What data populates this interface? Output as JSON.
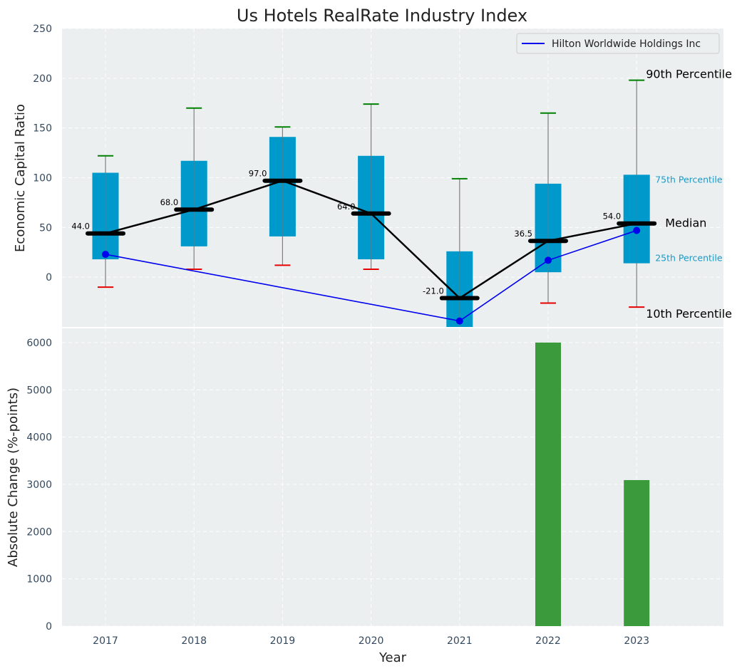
{
  "chart_data": [
    {
      "type": "box",
      "title": "Us Hotels RealRate Industry Index",
      "ylabel": "Economic Capital Ratio",
      "categories": [
        "2017",
        "2018",
        "2019",
        "2020",
        "2021",
        "2022",
        "2023"
      ],
      "ylim": [
        -50,
        250
      ],
      "yticks": [
        0,
        50,
        100,
        150,
        200,
        250
      ],
      "grid": true,
      "p10": [
        -10,
        8,
        12,
        8,
        null,
        -26,
        -30
      ],
      "p25": [
        18,
        31,
        41,
        18,
        -50,
        5,
        14
      ],
      "median": [
        44.0,
        68.0,
        97.0,
        64.0,
        -21.0,
        36.5,
        54.0
      ],
      "median_labels": [
        "44.0",
        "68.0",
        "97.0",
        "64.0",
        "-21.0",
        "36.5",
        "54.0"
      ],
      "p75": [
        105,
        117,
        141,
        122,
        26,
        94,
        103
      ],
      "p90": [
        122,
        170,
        151,
        174,
        99,
        165,
        198
      ],
      "series": [
        {
          "name": "Hilton Worldwide Holdings Inc",
          "x": [
            "2017",
            "2021",
            "2022",
            "2023"
          ],
          "values": [
            23,
            -44,
            17,
            47
          ],
          "color": "#0000ee"
        }
      ],
      "legend": {
        "position": "top-right",
        "entries": [
          "Hilton Worldwide Holdings Inc"
        ]
      },
      "annotations": {
        "p90": "90th Percentile",
        "p75": "75th Percentile",
        "median": "Median",
        "p25": "25th Percentile",
        "p10": "10th Percentile"
      },
      "colors": {
        "box": "#0099cc",
        "median": "#000000",
        "p90_cap": "#008000",
        "p10_cap": "#e60000",
        "whisker": "#808080",
        "background": "#ebeff0"
      }
    },
    {
      "type": "bar",
      "xlabel": "Year",
      "ylabel": "Absolute Change (%-points)",
      "categories": [
        "2017",
        "2018",
        "2019",
        "2020",
        "2021",
        "2022",
        "2023"
      ],
      "values": [
        0,
        0,
        0,
        0,
        0,
        6000,
        3090
      ],
      "ylim": [
        0,
        6300
      ],
      "yticks": [
        0,
        1000,
        2000,
        3000,
        4000,
        5000,
        6000
      ],
      "grid": true,
      "colors": {
        "bar": "#3a9a3c",
        "background": "#ebeff0"
      }
    }
  ]
}
